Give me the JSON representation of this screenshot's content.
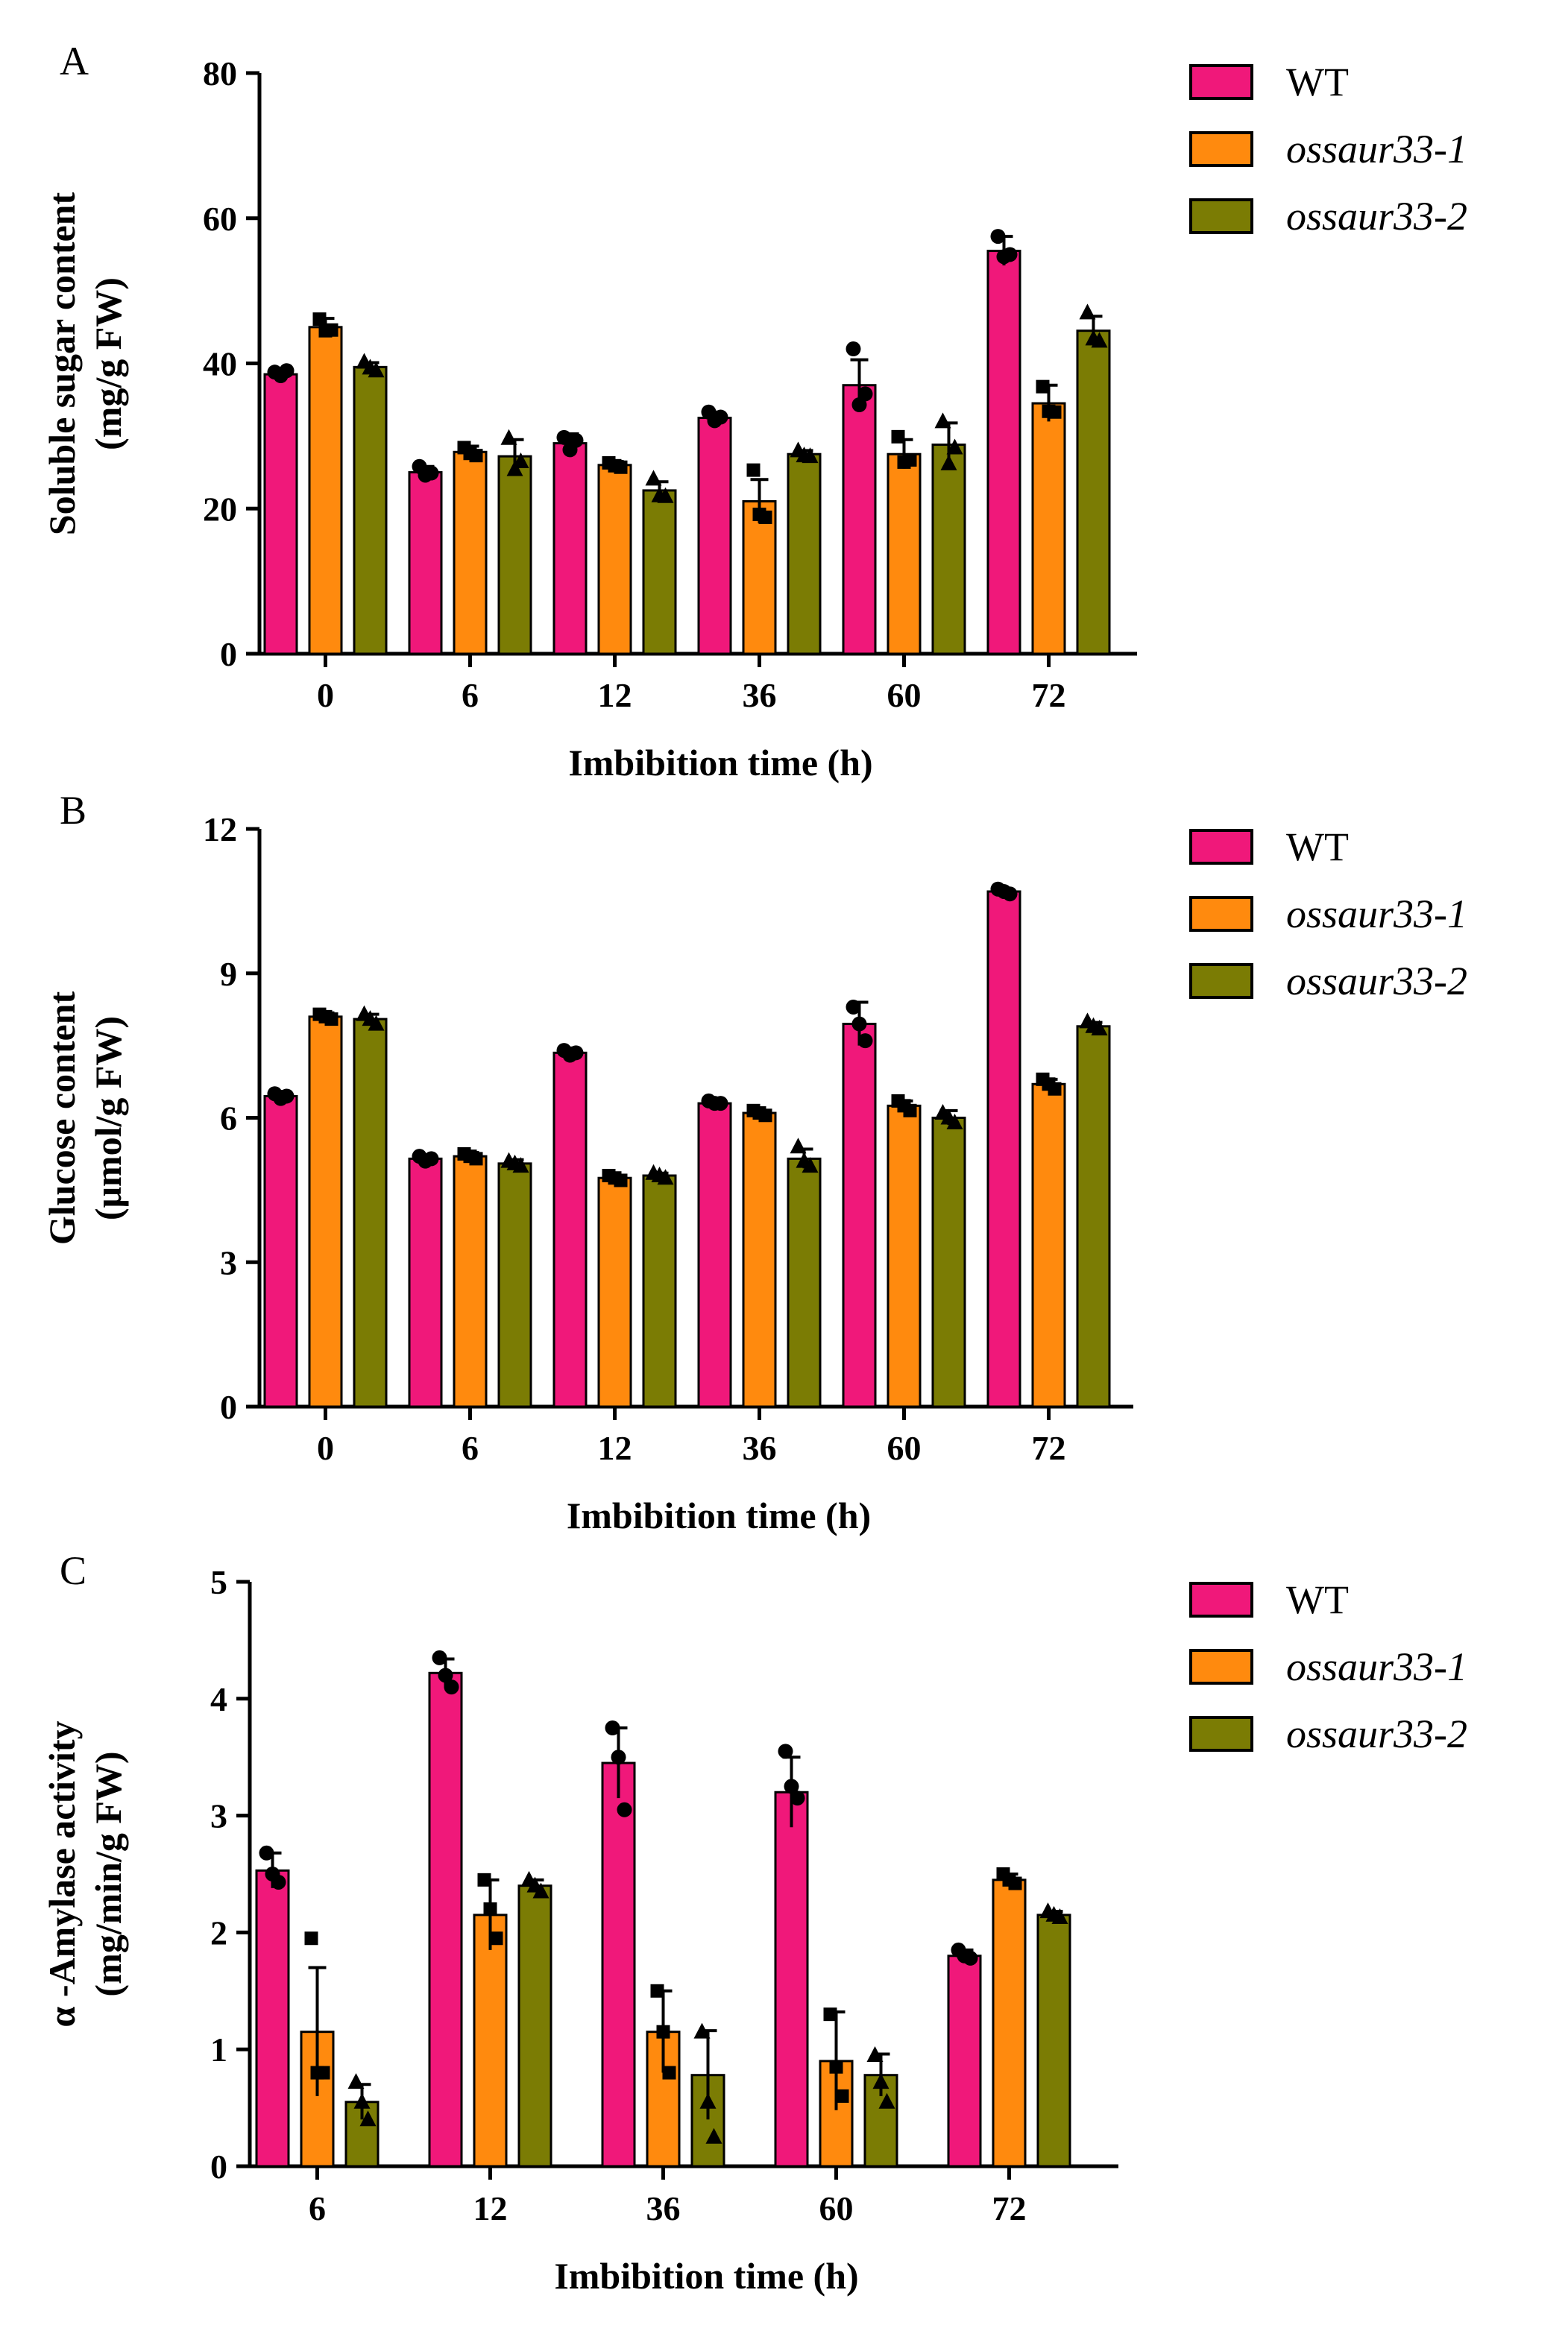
{
  "chart_data": [
    {
      "panel": "A",
      "type": "bar",
      "xlabel": "Imbibition time (h)",
      "ylabel": [
        "Soluble sugar content",
        "(mg/g FW)"
      ],
      "ylim": [
        0,
        80
      ],
      "yticks": [
        0,
        20,
        40,
        60,
        80
      ],
      "categories": [
        "0",
        "6",
        "12",
        "36",
        "60",
        "72"
      ],
      "series": [
        {
          "name": "WT",
          "values": [
            38.5,
            25.0,
            29.0,
            32.5,
            37.0,
            55.5
          ],
          "errors": [
            0.8,
            0.8,
            1.3,
            0.8,
            3.5,
            2.0
          ],
          "points": [
            [
              38.8,
              38.3,
              39.0
            ],
            [
              25.8,
              24.6,
              24.9
            ],
            [
              29.8,
              28.1,
              29.4
            ],
            [
              33.3,
              32.1,
              32.6
            ],
            [
              42.0,
              34.3,
              35.8
            ],
            [
              57.5,
              54.7,
              55.0
            ]
          ]
        },
        {
          "name": "ossaur33-1",
          "values": [
            45.0,
            27.8,
            26.0,
            21.0,
            27.5,
            34.5
          ],
          "errors": [
            1.2,
            0.8,
            0.5,
            3.0,
            2.0,
            2.5
          ],
          "points": [
            [
              46.1,
              44.5,
              44.6
            ],
            [
              28.4,
              27.6,
              27.3
            ],
            [
              26.3,
              25.9,
              25.7
            ],
            [
              25.3,
              19.2,
              18.8
            ],
            [
              29.9,
              26.4,
              26.7
            ],
            [
              36.8,
              33.4,
              33.3
            ]
          ]
        },
        {
          "name": "ossaur33-2",
          "values": [
            39.5,
            27.2,
            22.5,
            27.5,
            28.8,
            44.5
          ],
          "errors": [
            0.6,
            2.3,
            1.2,
            0.5,
            3.0,
            2.0
          ],
          "points": [
            [
              40.2,
              39.4,
              39.0
            ],
            [
              29.7,
              25.4,
              26.5
            ],
            [
              24.1,
              21.8,
              21.7
            ],
            [
              28.0,
              27.3,
              27.2
            ],
            [
              32.0,
              26.2,
              28.4
            ],
            [
              47.0,
              43.4,
              43.1
            ]
          ]
        }
      ],
      "legend": [
        "WT",
        "ossaur33-1",
        "ossaur33-2"
      ],
      "legend_position": "right"
    },
    {
      "panel": "B",
      "type": "bar",
      "xlabel": "Imbibition time (h)",
      "ylabel": [
        "Glucose content",
        "(μmol/g FW)"
      ],
      "ylim": [
        0,
        12
      ],
      "yticks": [
        0,
        3,
        6,
        9,
        12
      ],
      "categories": [
        "0",
        "6",
        "12",
        "36",
        "60",
        "72"
      ],
      "series": [
        {
          "name": "WT",
          "values": [
            6.45,
            5.15,
            7.35,
            6.3,
            7.95,
            10.7
          ],
          "errors": [
            0.1,
            0.08,
            0.1,
            0.05,
            0.45,
            0.05
          ],
          "points": [
            [
              6.5,
              6.4,
              6.45
            ],
            [
              5.2,
              5.1,
              5.15
            ],
            [
              7.4,
              7.3,
              7.35
            ],
            [
              6.35,
              6.3,
              6.3
            ],
            [
              8.3,
              7.95,
              7.6
            ],
            [
              10.75,
              10.7,
              10.65
            ]
          ]
        },
        {
          "name": "ossaur33-1",
          "values": [
            8.1,
            5.2,
            4.75,
            6.1,
            6.25,
            6.7
          ],
          "errors": [
            0.08,
            0.08,
            0.05,
            0.05,
            0.1,
            0.1
          ],
          "points": [
            [
              8.15,
              8.1,
              8.05
            ],
            [
              5.25,
              5.2,
              5.15
            ],
            [
              4.8,
              4.75,
              4.7
            ],
            [
              6.15,
              6.1,
              6.05
            ],
            [
              6.35,
              6.25,
              6.15
            ],
            [
              6.8,
              6.7,
              6.6
            ]
          ]
        },
        {
          "name": "ossaur33-2",
          "values": [
            8.05,
            5.05,
            4.8,
            5.15,
            6.0,
            7.9
          ],
          "errors": [
            0.1,
            0.08,
            0.05,
            0.2,
            0.15,
            0.08
          ],
          "points": [
            [
              8.15,
              8.05,
              7.95
            ],
            [
              5.1,
              5.05,
              5.0
            ],
            [
              4.85,
              4.8,
              4.75
            ],
            [
              5.4,
              5.1,
              5.0
            ],
            [
              6.1,
              6.0,
              5.9
            ],
            [
              8.0,
              7.9,
              7.85
            ]
          ]
        }
      ],
      "legend": [
        "WT",
        "ossaur33-1",
        "ossaur33-2"
      ],
      "legend_position": "right"
    },
    {
      "panel": "C",
      "type": "bar",
      "xlabel": "Imbibition time (h)",
      "ylabel": [
        "α -Amylase activity",
        "(mg/min/g FW)"
      ],
      "ylim": [
        0,
        5
      ],
      "yticks": [
        0,
        1,
        2,
        3,
        4,
        5
      ],
      "categories": [
        "6",
        "12",
        "36",
        "60",
        "72"
      ],
      "series": [
        {
          "name": "WT",
          "values": [
            2.53,
            4.22,
            3.45,
            3.2,
            1.8
          ],
          "errors": [
            0.15,
            0.12,
            0.3,
            0.3,
            0.05
          ],
          "points": [
            [
              2.68,
              2.5,
              2.43
            ],
            [
              4.35,
              4.2,
              4.1
            ],
            [
              3.75,
              3.5,
              3.05
            ],
            [
              3.55,
              3.25,
              3.15
            ],
            [
              1.85,
              1.8,
              1.78
            ]
          ]
        },
        {
          "name": "ossaur33-1",
          "values": [
            1.15,
            2.15,
            1.15,
            0.9,
            2.45
          ],
          "errors": [
            0.55,
            0.3,
            0.35,
            0.42,
            0.05
          ],
          "points": [
            [
              1.95,
              0.8,
              0.8
            ],
            [
              2.45,
              2.2,
              1.95
            ],
            [
              1.5,
              1.15,
              0.8
            ],
            [
              1.3,
              0.85,
              0.6
            ],
            [
              2.5,
              2.45,
              2.42
            ]
          ]
        },
        {
          "name": "ossaur33-2",
          "values": [
            0.55,
            2.4,
            0.78,
            0.78,
            2.15
          ],
          "errors": [
            0.15,
            0.05,
            0.38,
            0.18,
            0.03
          ],
          "points": [
            [
              0.72,
              0.55,
              0.4
            ],
            [
              2.45,
              2.4,
              2.35
            ],
            [
              1.15,
              0.55,
              0.25
            ],
            [
              0.95,
              0.72,
              0.55
            ],
            [
              2.18,
              2.15,
              2.13
            ]
          ]
        }
      ],
      "legend": [
        "WT",
        "ossaur33-1",
        "ossaur33-2"
      ],
      "legend_position": "right"
    }
  ],
  "colors": {
    "WT": "#f0187a",
    "ossaur33-1": "#ff8a0e",
    "ossaur33-2": "#7b7c04",
    "axis": "#000000",
    "point": "#000000"
  },
  "marker_shapes": {
    "WT": "circle",
    "ossaur33-1": "square",
    "ossaur33-2": "triangle"
  }
}
